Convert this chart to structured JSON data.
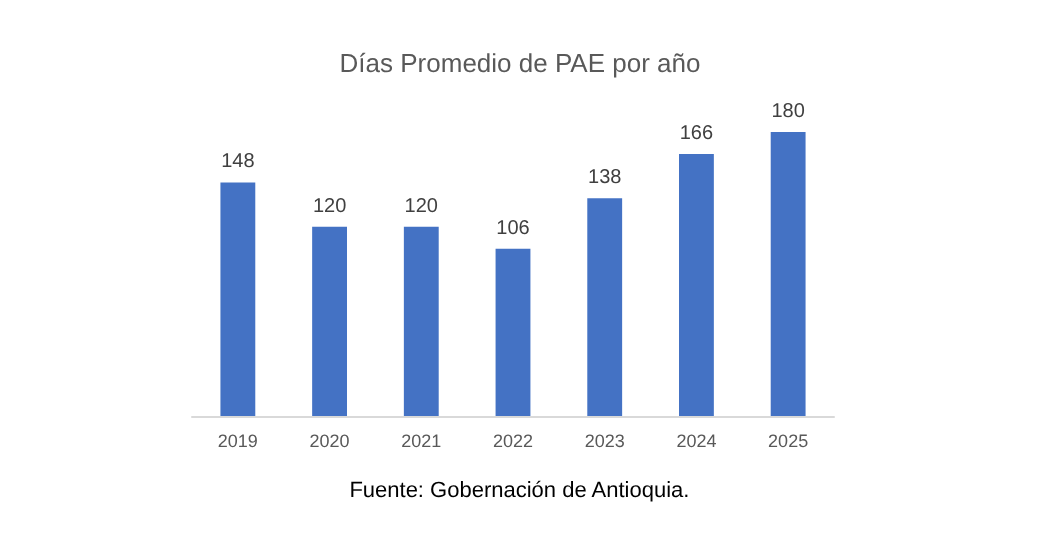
{
  "chart_data": {
    "type": "bar",
    "title": "Días Promedio de PAE por año",
    "categories": [
      "2019",
      "2020",
      "2021",
      "2022",
      "2023",
      "2024",
      "2025"
    ],
    "values": [
      148,
      120,
      120,
      106,
      138,
      166,
      180
    ],
    "color": "#4472c4",
    "data_labels": true,
    "annotations": [
      "Fuente: Gobernación de Antioquia."
    ]
  }
}
